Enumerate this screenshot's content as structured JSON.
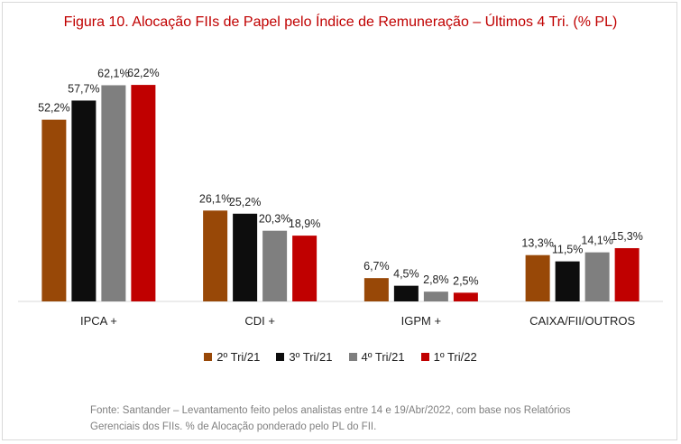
{
  "chart_data": {
    "type": "bar",
    "title": "Figura 10. Alocação FIIs de Papel pelo Índice de Remuneração – Últimos 4 Tri. (% PL)",
    "categories": [
      "IPCA +",
      "CDI +",
      "IGPM +",
      "CAIXA/FII/OUTROS"
    ],
    "series": [
      {
        "name": "2º Tri/21",
        "color": "#984807",
        "values": [
          52.2,
          26.1,
          6.7,
          13.3
        ],
        "labels": [
          "52,2%",
          "26,1%",
          "6,7%",
          "13,3%"
        ]
      },
      {
        "name": "3º Tri/21",
        "color": "#0d0d0d",
        "values": [
          57.7,
          25.2,
          4.5,
          11.5
        ],
        "labels": [
          "57,7%",
          "25,2%",
          "4,5%",
          "11,5%"
        ]
      },
      {
        "name": "4º Tri/21",
        "color": "#7f7f7f",
        "values": [
          62.1,
          20.3,
          2.8,
          14.1
        ],
        "labels": [
          "62,1%",
          "20,3%",
          "2,8%",
          "14,1%"
        ]
      },
      {
        "name": "1º Tri/22",
        "color": "#c00000",
        "values": [
          62.2,
          18.9,
          2.5,
          15.3
        ],
        "labels": [
          "62,2%",
          "18,9%",
          "2,5%",
          "15,3%"
        ]
      }
    ],
    "ylim": [
      0,
      70
    ],
    "grid": false,
    "legend_position": "bottom"
  },
  "source": {
    "line1": "Fonte: Santander – Levantamento feito pelos analistas entre 14 e 19/Abr/2022, com base nos Relatórios",
    "line2": "Gerenciais dos FIIs. % de Alocação ponderado pelo PL do FII."
  }
}
